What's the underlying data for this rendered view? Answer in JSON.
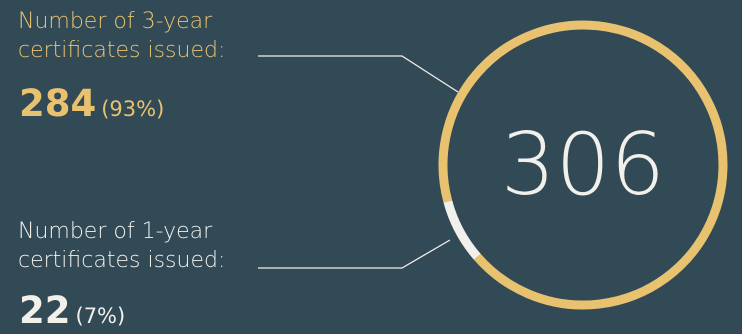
{
  "chart_data": {
    "type": "pie",
    "total": "306",
    "slices": [
      {
        "label_line1": "Number of 3-year",
        "label_line2": "certificates issued:",
        "value": 284,
        "value_text": "284",
        "percent": 93,
        "percent_text": "(93%)",
        "color": "#e9c270"
      },
      {
        "label_line1": "Number of 1-year",
        "label_line2": "certificates issued:",
        "value": 22,
        "value_text": "22",
        "percent": 7,
        "percent_text": "(7%)",
        "color": "#f2f0ea"
      }
    ]
  },
  "colors": {
    "background": "#324956",
    "accent": "#e9c270",
    "secondary": "#f2f0ea"
  }
}
